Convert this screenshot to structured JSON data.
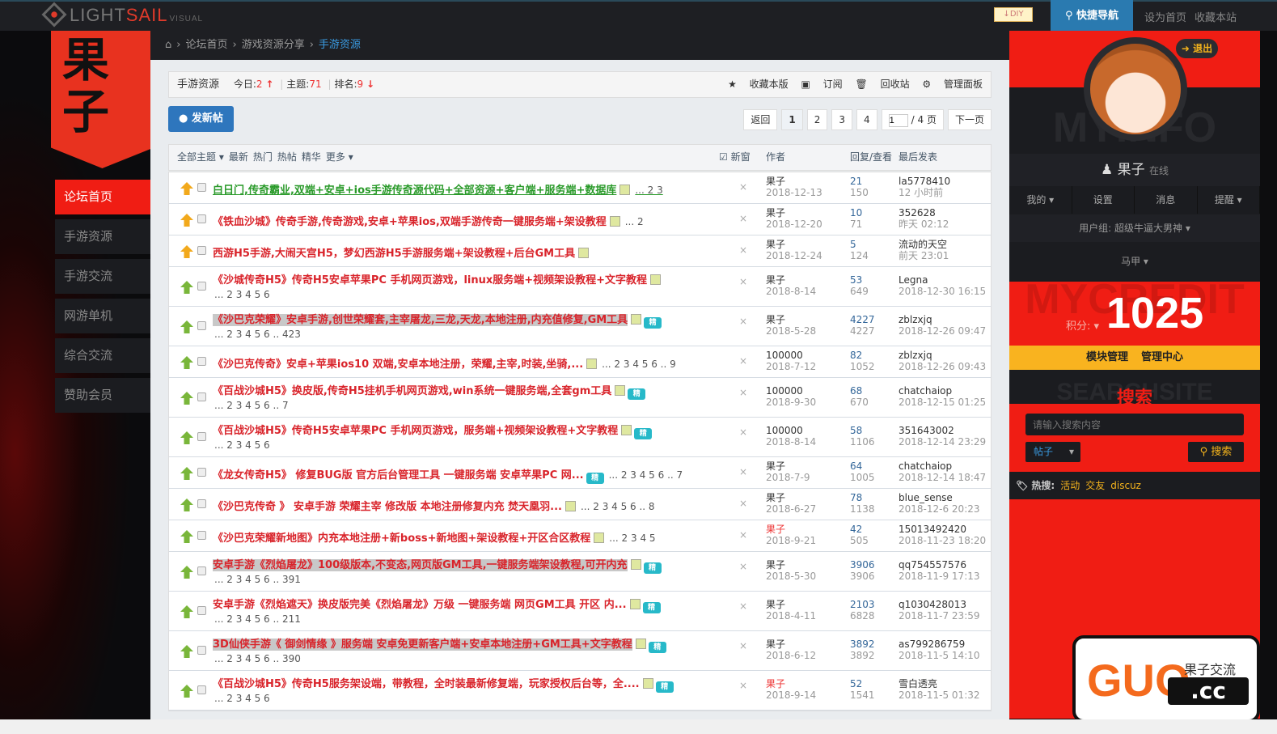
{
  "topbar": {
    "logo_main": "LIGHT",
    "logo_accent": "SAIL",
    "logo_sub": "VISUAL",
    "diy": "DIY",
    "quick_nav": "快捷导航",
    "set_home": "设为首页",
    "bookmark": "收藏本站"
  },
  "brand": {
    "text": "果子"
  },
  "nav": {
    "items": [
      {
        "label": "论坛首页",
        "active": true
      },
      {
        "label": "手游资源"
      },
      {
        "label": "手游交流"
      },
      {
        "label": "网游单机"
      },
      {
        "label": "综合交流"
      },
      {
        "label": "赞助会员"
      }
    ]
  },
  "breadcrumb": {
    "items": [
      "论坛首页",
      "游戏资源分享",
      "手游资源"
    ]
  },
  "forum": {
    "name": "手游资源",
    "today_label": "今日:",
    "today": "2",
    "topics_label": "主题:",
    "topics": "71",
    "rank_label": "排名:",
    "rank": "9",
    "actions": [
      "收藏本版",
      "订阅",
      "回收站",
      "管理面板"
    ]
  },
  "post_button": "发新帖",
  "pager": {
    "back": "返回",
    "pages": [
      "1",
      "2",
      "3",
      "4"
    ],
    "current": "1",
    "input_value": "1",
    "total": "/ 4 页",
    "next": "下一页"
  },
  "table_header": {
    "filters": [
      "全部主题 ▾",
      "最新",
      "热门",
      "热帖",
      "精华",
      "更多 ▾"
    ],
    "new_window": "新窗",
    "author": "作者",
    "replies_views": "回复/查看",
    "last_post": "最后发表"
  },
  "threads": [
    {
      "title": "白日门,传奇霸业,双端+安卓+ios手游传奇源代码+全部资源+客户端+服务端+数据库",
      "green": true,
      "hot": true,
      "img": true,
      "pages": "... 2  3",
      "author": "果子",
      "date": "2018-12-13",
      "replies": "21",
      "views": "150",
      "last_user": "la5778410",
      "last_time": "12 小时前"
    },
    {
      "title": "《铁血沙城》传奇手游,传奇游戏,安卓+苹果ios,双端手游传奇一键服务端+架设教程",
      "hot": true,
      "img": true,
      "pages": "... 2",
      "author": "果子",
      "date": "2018-12-20",
      "replies": "10",
      "views": "71",
      "last_user": "352628",
      "last_time": "昨天 02:12"
    },
    {
      "title": "西游H5手游,大闹天宫H5，梦幻西游H5手游服务端+架设教程+后台GM工具",
      "hot": true,
      "img": true,
      "author": "果子",
      "date": "2018-12-24",
      "replies": "5",
      "views": "124",
      "last_user": "流动的天空",
      "last_time": "前天 23:01"
    },
    {
      "title": "《沙城传奇H5》传奇H5安卓苹果PC 手机网页游戏，linux服务端+视频架设教程+文字教程",
      "img": true,
      "sub": "... 2  3  4  5  6",
      "author": "果子",
      "date": "2018-8-14",
      "replies": "53",
      "views": "649",
      "last_user": "Legna",
      "last_time": "2018-12-30 16:15"
    },
    {
      "title": "《沙巴克荣耀》安卓手游,创世荣耀套,主宰屠龙,三龙,天龙,本地注册,内充值修复,GM工具",
      "hl": true,
      "img": true,
      "jing": true,
      "sub": "... 2  3  4  5  6 .. 423",
      "author": "果子",
      "date": "2018-5-28",
      "replies": "4227",
      "views": "4227",
      "last_user": "zblzxjq",
      "last_time": "2018-12-26 09:47"
    },
    {
      "title": "《沙巴克传奇》安卓+苹果ios10 双端,安卓本地注册，荣耀,主宰,时装,坐骑,...",
      "img": true,
      "pages": "... 2  3  4  5  6 .. 9",
      "author": "100000",
      "date": "2018-7-12",
      "replies": "82",
      "views": "1052",
      "last_user": "zblzxjq",
      "last_time": "2018-12-26 09:43"
    },
    {
      "title": "《百战沙城H5》换皮版,传奇H5挂机手机网页游戏,win系统一键服务端,全套gm工具",
      "img": true,
      "jing": true,
      "sub": "... 2  3  4  5  6 .. 7",
      "author": "100000",
      "date": "2018-9-30",
      "replies": "68",
      "views": "670",
      "last_user": "chatchaiop",
      "last_time": "2018-12-15 01:25"
    },
    {
      "title": "《百战沙城H5》传奇H5安卓苹果PC 手机网页游戏，服务端+视频架设教程+文字教程",
      "img": true,
      "jing": true,
      "sub": "... 2  3  4  5  6",
      "author": "100000",
      "date": "2018-8-14",
      "replies": "58",
      "views": "1106",
      "last_user": "351643002",
      "last_time": "2018-12-14 23:29"
    },
    {
      "title": "《龙女传奇H5》 修复BUG版 官方后台管理工具 一键服务端 安卓苹果PC 网...",
      "jing": true,
      "pages": "... 2  3  4  5  6 .. 7",
      "author": "果子",
      "date": "2018-7-9",
      "replies": "64",
      "views": "1005",
      "last_user": "chatchaiop",
      "last_time": "2018-12-14 18:47"
    },
    {
      "title": "《沙巴克传奇 》 安卓手游 荣耀主宰 修改版 本地注册修复内充 焚天凰羽...",
      "img": true,
      "pages": "... 2  3  4  5  6 .. 8",
      "author": "果子",
      "date": "2018-6-27",
      "replies": "78",
      "views": "1138",
      "last_user": "blue_sense",
      "last_time": "2018-12-6 20:23"
    },
    {
      "title": "《沙巴克荣耀新地图》内充本地注册+新boss+新地图+架设教程+开区合区教程",
      "img": true,
      "pages": "... 2  3  4  5",
      "author": "果子",
      "author_red": true,
      "date": "2018-9-21",
      "replies": "42",
      "views": "505",
      "last_user": "15013492420",
      "last_time": "2018-11-23 18:20"
    },
    {
      "title": "安卓手游《烈焰屠龙》100级版本,不变态,网页版GM工具,一键服务端架设教程,可开内充",
      "hl": true,
      "img": true,
      "jing": true,
      "sub": "... 2  3  4  5  6 .. 391",
      "author": "果子",
      "date": "2018-5-30",
      "replies": "3906",
      "views": "3906",
      "last_user": "qq754557576",
      "last_time": "2018-11-9 17:13"
    },
    {
      "title": "安卓手游《烈焰遮天》换皮版完美《烈焰屠龙》万级 一键服务端 网页GM工具 开区 内...",
      "img": true,
      "jing": true,
      "sub": "... 2  3  4  5  6 .. 211",
      "author": "果子",
      "date": "2018-4-11",
      "replies": "2103",
      "views": "6828",
      "last_user": "q1030428013",
      "last_time": "2018-11-7 23:59"
    },
    {
      "title": "3D仙侠手游《 御剑情缘 》服务端 安卓免更新客户端+安卓本地注册+GM工具+文字教程",
      "hl": true,
      "img": true,
      "jing": true,
      "sub": "... 2  3  4  5  6 .. 390",
      "author": "果子",
      "date": "2018-6-12",
      "replies": "3892",
      "views": "3892",
      "last_user": "as799286759",
      "last_time": "2018-11-5 14:10"
    },
    {
      "title": "《百战沙城H5》传奇H5服务架设端，带教程，全时装最新修复端，玩家授权后台等，全....",
      "img": true,
      "jing": true,
      "sub": "... 2  3  4  5  6",
      "author": "果子",
      "author_red": true,
      "date": "2018-9-14",
      "replies": "52",
      "views": "1541",
      "last_user": "雪白透亮",
      "last_time": "2018-11-5 01:32"
    }
  ],
  "thread_labels": {
    "jing": "精",
    "close": "×"
  },
  "sidebar": {
    "ghost_top": "MYINFO",
    "logout": "退出",
    "username": "果子",
    "status": "在线",
    "menu": [
      "我的 ▾",
      "设置",
      "消息",
      "提醒 ▾"
    ],
    "group": "用户组: 超级牛逼大男神 ▾",
    "majia": "马甲 ▾",
    "ghost_credit": "MYCREDIT",
    "credit_label": "积分: ▾",
    "credit": "1025",
    "manage": [
      "模块管理",
      "管理中心"
    ],
    "ghost_search": "SEARCHSITE",
    "search_title": "搜索",
    "search_placeholder": "请输入搜索内容",
    "search_type": "帖子",
    "search_button": "搜索",
    "hot_label": "热搜:",
    "hot_keywords": [
      "活动",
      "交友",
      "discuz"
    ]
  },
  "badge": {
    "logo": "GUO",
    "cn": "果子交流",
    "cc": ".cc"
  },
  "colors": {
    "accent_red": "#f01d14",
    "accent_yellow": "#f9b31f",
    "link_blue": "#2e76bd",
    "title_red": "#d9242b",
    "title_green": "#2a9a2a"
  }
}
